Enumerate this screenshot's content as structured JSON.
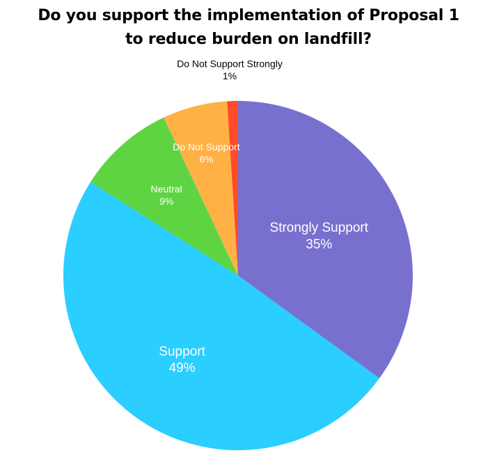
{
  "chart_data": {
    "type": "pie",
    "title": "Do you support the implementation of Proposal 1 to reduce burden on landfill?",
    "title_lines": [
      "Do you support the implementation of Proposal 1",
      "to reduce burden on landfill?"
    ],
    "categories": [
      "Strongly Support",
      "Support",
      "Neutral",
      "Do Not Support",
      "Do Not Support Strongly"
    ],
    "values": [
      35,
      49,
      9,
      6,
      1
    ],
    "value_labels": [
      "35%",
      "49%",
      "9%",
      "6%",
      "1%"
    ],
    "colors": [
      "#7870cf",
      "#2aceff",
      "#5fd443",
      "#ffb145",
      "#ff4b27"
    ],
    "legend": "none",
    "start_direction": "12 o'clock",
    "order": "clockwise"
  }
}
